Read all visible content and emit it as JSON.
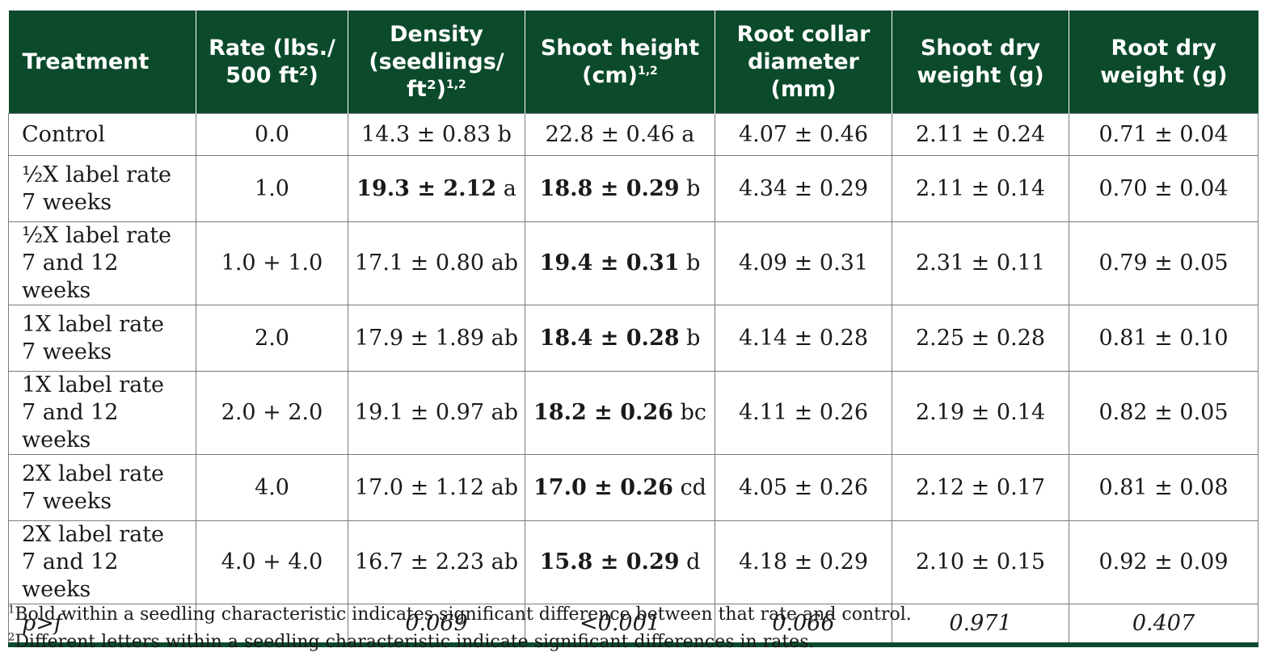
{
  "headers": [
    {
      "main": "Treatment",
      "sup": ""
    },
    {
      "main": "Rate (lbs./ 500 ft²)",
      "sup": ""
    },
    {
      "main": "Density (seedlings/ ft²)",
      "sup": "1,2"
    },
    {
      "main": "Shoot height (cm)",
      "sup": "1,2"
    },
    {
      "main": "Root collar diameter (mm)",
      "sup": ""
    },
    {
      "main": "Shoot dry weight (g)",
      "sup": ""
    },
    {
      "main": "Root dry weight (g)",
      "sup": ""
    }
  ],
  "rows": [
    {
      "treatment": "Control",
      "rate": "0.0",
      "density": {
        "value": "14.3 ± 0.83",
        "letter": "b",
        "bold": false
      },
      "shoot_height": {
        "value": "22.8 ± 0.46",
        "letter": "a",
        "bold": false
      },
      "root_collar": "4.07 ± 0.46",
      "shoot_dry": "2.11 ± 0.24",
      "root_dry": "0.71 ± 0.04"
    },
    {
      "treatment": "½X label rate\n7 weeks",
      "rate": "1.0",
      "density": {
        "value": "19.3 ± 2.12",
        "letter": "a",
        "bold": true
      },
      "shoot_height": {
        "value": "18.8 ± 0.29",
        "letter": "b",
        "bold": true
      },
      "root_collar": "4.34 ± 0.29",
      "shoot_dry": "2.11 ± 0.14",
      "root_dry": "0.70 ± 0.04"
    },
    {
      "treatment": "½X label rate\n7 and 12 weeks",
      "rate": "1.0 + 1.0",
      "density": {
        "value": "17.1 ± 0.80",
        "letter": "ab",
        "bold": false
      },
      "shoot_height": {
        "value": "19.4 ± 0.31",
        "letter": "b",
        "bold": true
      },
      "root_collar": "4.09 ± 0.31",
      "shoot_dry": "2.31 ± 0.11",
      "root_dry": "0.79 ± 0.05"
    },
    {
      "treatment": "1X label rate\n7 weeks",
      "rate": "2.0",
      "density": {
        "value": "17.9 ± 1.89",
        "letter": "ab",
        "bold": false
      },
      "shoot_height": {
        "value": "18.4 ± 0.28",
        "letter": "b",
        "bold": true
      },
      "root_collar": "4.14 ± 0.28",
      "shoot_dry": "2.25 ± 0.28",
      "root_dry": "0.81 ± 0.10"
    },
    {
      "treatment": "1X label rate\n7 and 12 weeks",
      "rate": "2.0 + 2.0",
      "density": {
        "value": "19.1 ± 0.97",
        "letter": "ab",
        "bold": false
      },
      "shoot_height": {
        "value": "18.2 ± 0.26",
        "letter": "bc",
        "bold": true
      },
      "root_collar": "4.11 ± 0.26",
      "shoot_dry": "2.19 ± 0.14",
      "root_dry": "0.82 ± 0.05"
    },
    {
      "treatment": "2X label rate\n7 weeks",
      "rate": "4.0",
      "density": {
        "value": "17.0 ± 1.12",
        "letter": "ab",
        "bold": false
      },
      "shoot_height": {
        "value": "17.0 ± 0.26",
        "letter": "cd",
        "bold": true
      },
      "root_collar": "4.05 ± 0.26",
      "shoot_dry": "2.12 ± 0.17",
      "root_dry": "0.81 ± 0.08"
    },
    {
      "treatment": "2X label rate\n7 and 12 weeks",
      "rate": "4.0 + 4.0",
      "density": {
        "value": "16.7 ± 2.23",
        "letter": "ab",
        "bold": false
      },
      "shoot_height": {
        "value": "15.8 ± 0.29",
        "letter": "d",
        "bold": true
      },
      "root_collar": "4.18 ± 0.29",
      "shoot_dry": "2.10 ± 0.15",
      "root_dry": "0.92 ± 0.09"
    }
  ],
  "pf_row": {
    "label": "p>f",
    "rate": "",
    "density": "0.069",
    "shoot_height": "<0.001",
    "root_collar": "0.066",
    "shoot_dry": "0.971",
    "root_dry": "0.407"
  },
  "footnotes": [
    {
      "mark": "1",
      "text": "Bold within a seedling characteristic indicates significant difference between that rate and control."
    },
    {
      "mark": "2",
      "text": "Different letters within a seedling characteristic indicate significant differences in rates."
    }
  ],
  "colors": {
    "header_bg": "#0b4a2b",
    "header_text": "#ffffff"
  }
}
